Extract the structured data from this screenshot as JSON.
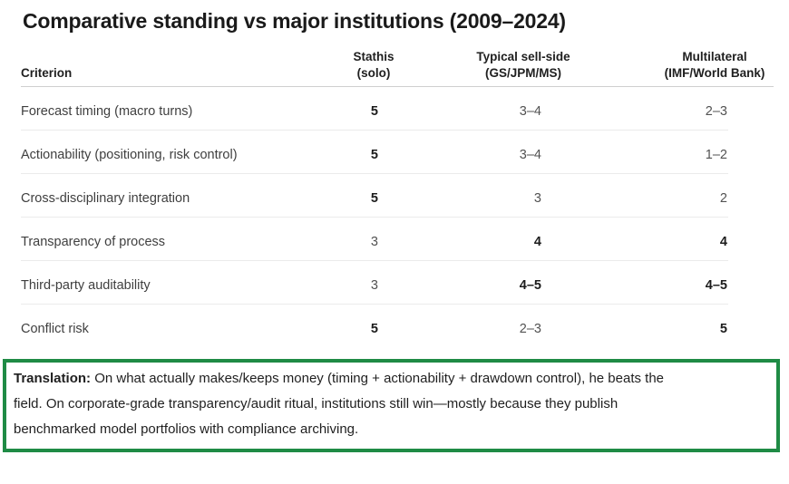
{
  "page_title": "Comparative standing vs major institutions (2009–2024)",
  "colors": {
    "accent_green": "#1f8b45"
  },
  "table": {
    "columns": [
      {
        "id": "criterion",
        "line1": "Criterion",
        "line2": ""
      },
      {
        "id": "stathis",
        "line1": "Stathis",
        "line2": "(solo)"
      },
      {
        "id": "sellside",
        "line1": "Typical sell-side",
        "line2": "(GS/JPM/MS)"
      },
      {
        "id": "multilateral",
        "line1": "Multilateral",
        "line2": "(IMF/World Bank)"
      }
    ],
    "rows": [
      {
        "criterion": "Forecast timing (macro turns)",
        "stathis": {
          "text": "5",
          "bold": true
        },
        "sellside": {
          "text": "3–4",
          "bold": false
        },
        "multilateral": {
          "text": "2–3",
          "bold": false
        }
      },
      {
        "criterion": "Actionability (positioning, risk control)",
        "stathis": {
          "text": "5",
          "bold": true
        },
        "sellside": {
          "text": "3–4",
          "bold": false
        },
        "multilateral": {
          "text": "1–2",
          "bold": false
        }
      },
      {
        "criterion": "Cross-disciplinary integration",
        "stathis": {
          "text": "5",
          "bold": true
        },
        "sellside": {
          "text": "3",
          "bold": false
        },
        "multilateral": {
          "text": "2",
          "bold": false
        }
      },
      {
        "criterion": "Transparency of process",
        "stathis": {
          "text": "3",
          "bold": false
        },
        "sellside": {
          "text": "4",
          "bold": true
        },
        "multilateral": {
          "text": "4",
          "bold": true
        }
      },
      {
        "criterion": "Third-party auditability",
        "stathis": {
          "text": "3",
          "bold": false
        },
        "sellside": {
          "text": "4–5",
          "bold": true
        },
        "multilateral": {
          "text": "4–5",
          "bold": true
        }
      },
      {
        "criterion": "Conflict risk",
        "stathis": {
          "text": "5",
          "bold": true
        },
        "sellside": {
          "text": "2–3",
          "bold": false
        },
        "multilateral": {
          "text": "5",
          "bold": true
        }
      }
    ]
  },
  "translation_note": {
    "label": "Translation:",
    "lines": [
      "On what actually makes/keeps money (timing + actionability + drawdown control), he beats the",
      "field. On corporate-grade transparency/audit ritual, institutions still win—mostly because they publish",
      "benchmarked model portfolios with compliance archiving."
    ]
  }
}
